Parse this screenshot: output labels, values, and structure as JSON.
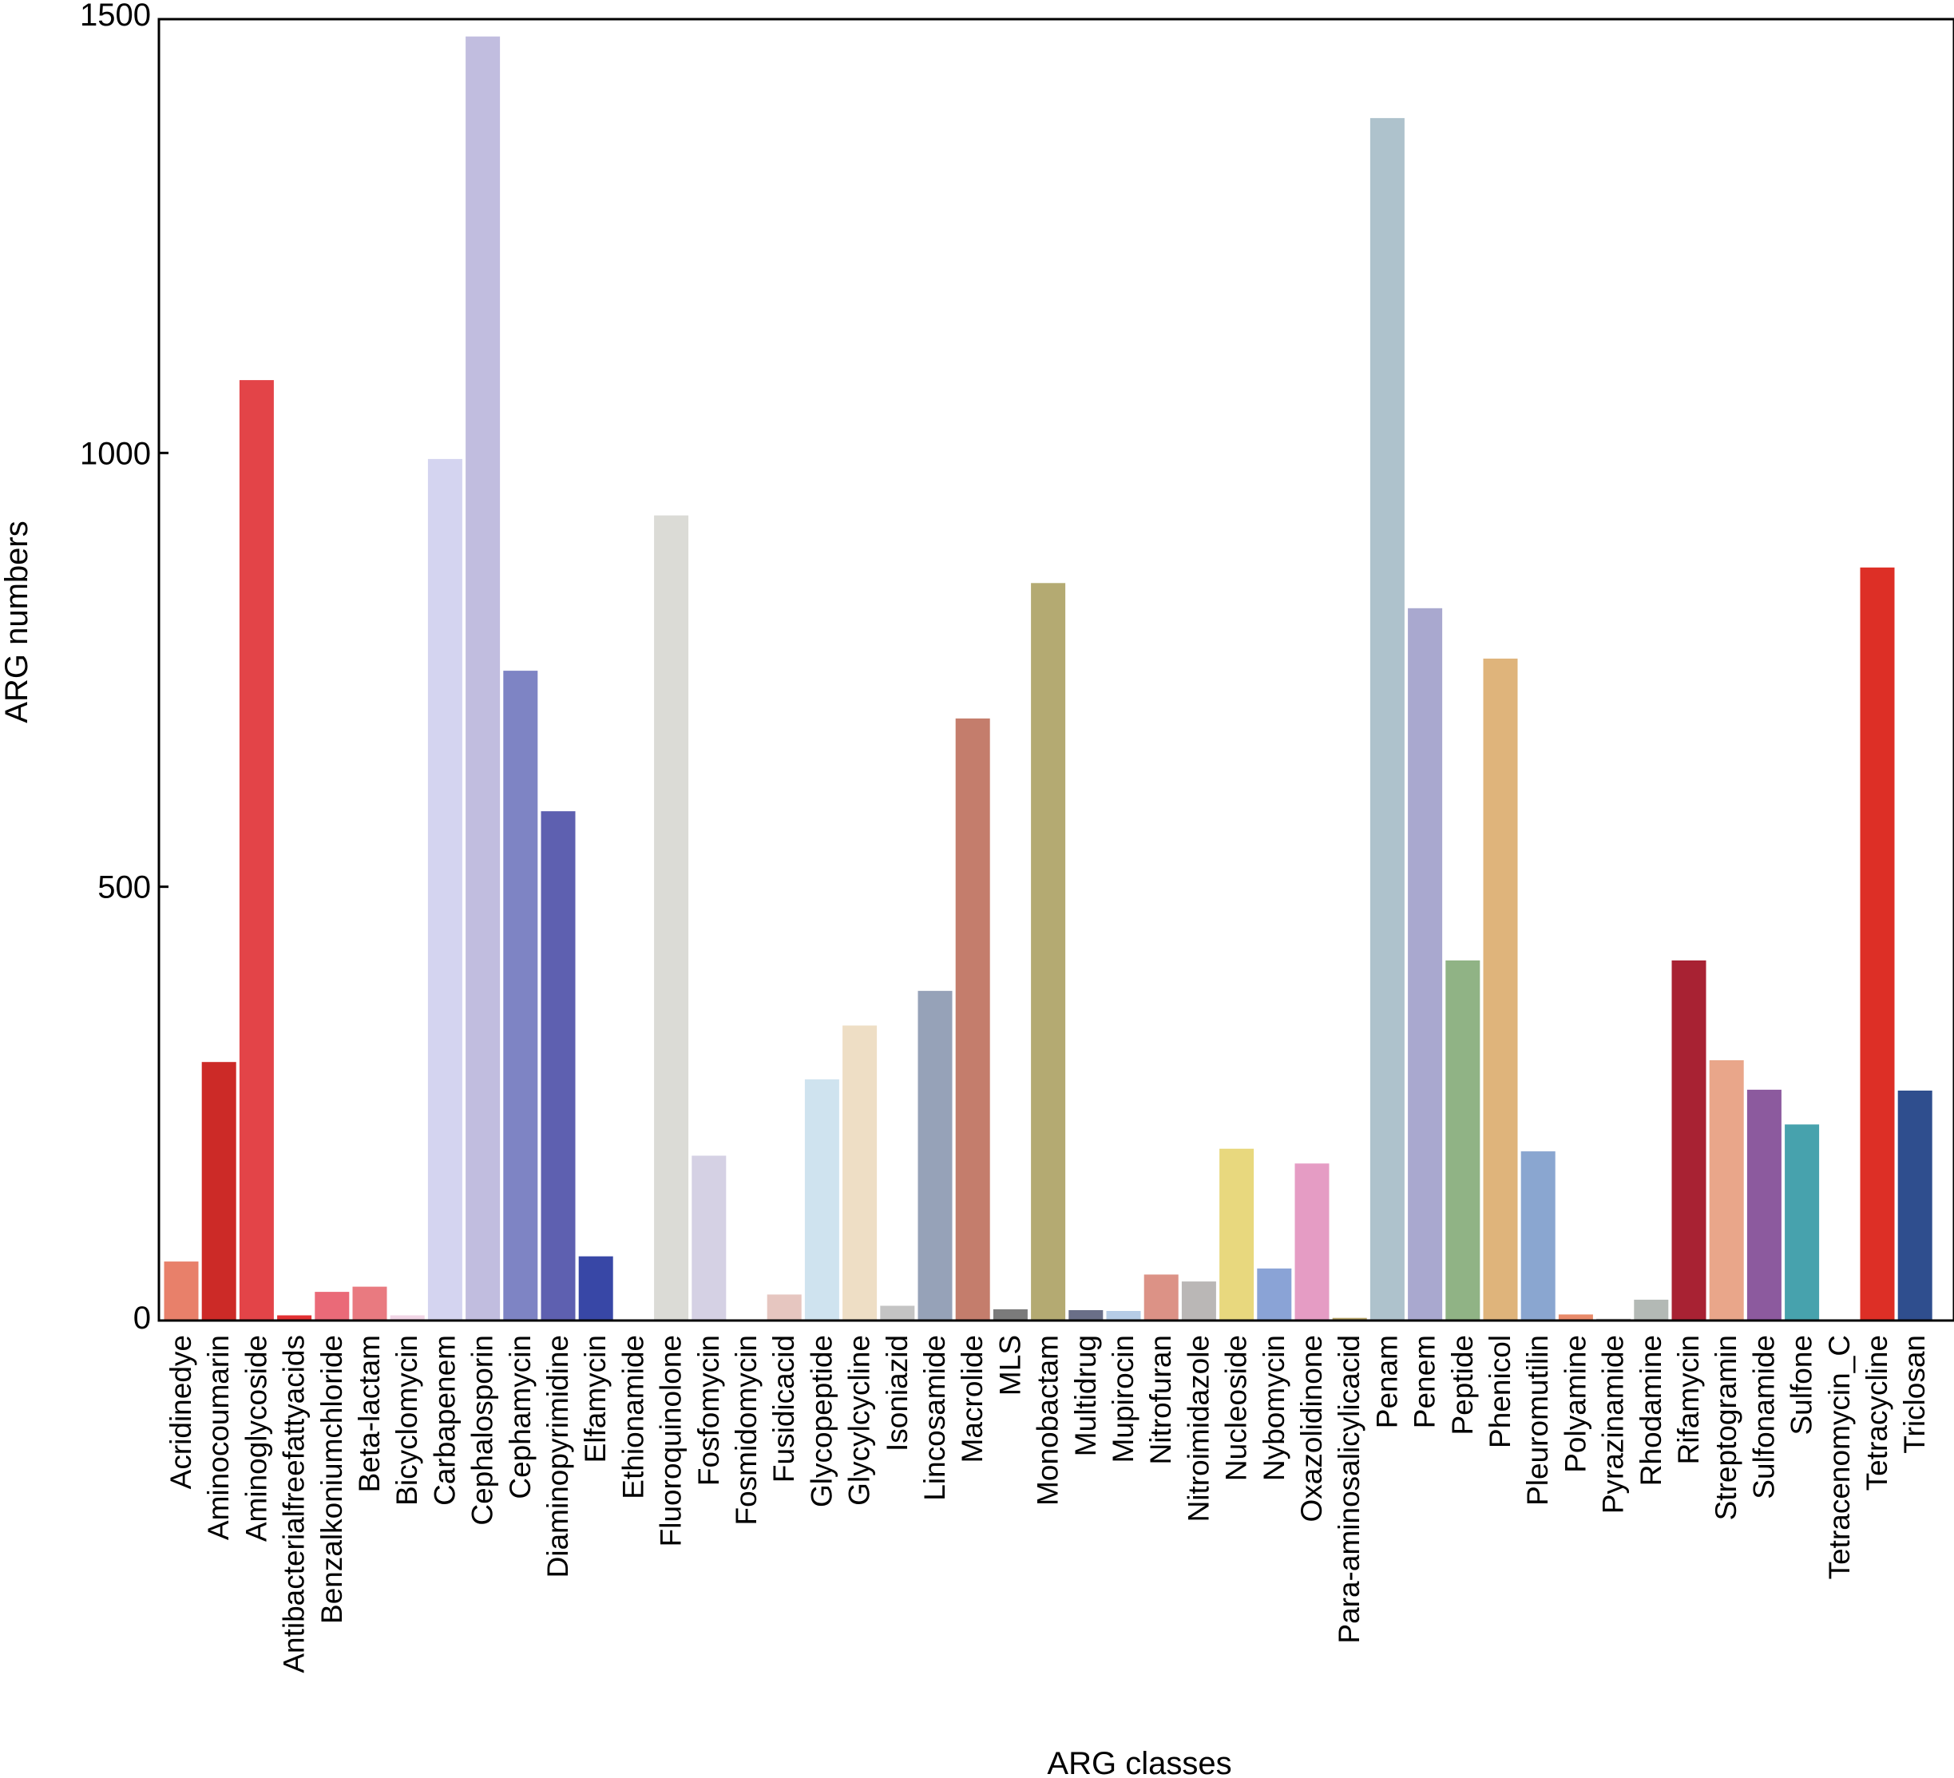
{
  "chart_data": {
    "type": "bar",
    "title": "",
    "xlabel": "ARG classes",
    "ylabel": "ARG numbers",
    "ylim": [
      0,
      1500
    ],
    "yticks": [
      0,
      500,
      1000,
      1500
    ],
    "grid": false,
    "legend": "none",
    "categories": [
      "Acridinedye",
      "Aminocoumarin",
      "Aminoglycoside",
      "Antibacterialfreefattyacids",
      "Benzalkoniumchloride",
      "Beta-lactam",
      "Bicyclomycin",
      "Carbapenem",
      "Cephalosporin",
      "Cephamycin",
      "Diaminopyrimidine",
      "Elfamycin",
      "Ethionamide",
      "Fluoroquinolone",
      "Fosfomycin",
      "Fosmidomycin",
      "Fusidicacid",
      "Glycopeptide",
      "Glycylcycline",
      "Isoniazid",
      "Lincosamide",
      "Macrolide",
      "MLS",
      "Monobactam",
      "Multidrug",
      "Mupirocin",
      "Nitrofuran",
      "Nitroimidazole",
      "Nucleoside",
      "Nybomycin",
      "Oxazolidinone",
      "Para-aminosalicylicacid",
      "Penam",
      "Penem",
      "Peptide",
      "Phenicol",
      "Pleuromutilin",
      "Polyamine",
      "Pyrazinamide",
      "Rhodamine",
      "Rifamycin",
      "Streptogramin",
      "Sulfonamide",
      "Sulfone",
      "Tetracenomycin_C",
      "Tetracycline",
      "Triclosan"
    ],
    "values": [
      68,
      298,
      1084,
      6,
      33,
      39,
      6,
      993,
      1480,
      749,
      587,
      74,
      1,
      928,
      190,
      1,
      30,
      278,
      340,
      17,
      380,
      694,
      13,
      850,
      12,
      11,
      53,
      45,
      198,
      60,
      181,
      3,
      1386,
      821,
      415,
      763,
      195,
      7,
      2,
      24,
      415,
      300,
      266,
      226,
      1,
      868,
      265
    ],
    "colors": [
      "#e8806a",
      "#cc2a27",
      "#e34448",
      "#e23033",
      "#ea6a78",
      "#e97a80",
      "#f1d5e6",
      "#d4d4f0",
      "#c1bddf",
      "#7e84c4",
      "#5e60b0",
      "#3847a6",
      "#c8c8c8",
      "#dbdbd6",
      "#d5d1e4",
      "#d0d0d0",
      "#e6c6c0",
      "#cfe3ef",
      "#eedec5",
      "#c4c4c4",
      "#96a2b8",
      "#c47d6c",
      "#7b7b7b",
      "#b4aa72",
      "#6a6f88",
      "#b6cce6",
      "#dc9286",
      "#bab7b6",
      "#e8d87e",
      "#8aa3d6",
      "#e59cc4",
      "#b8a66a",
      "#aec2cc",
      "#a9a8cf",
      "#90b385",
      "#dfb47b",
      "#8aa6d0",
      "#e88a6a",
      "#b8b8b8",
      "#b3b9b5",
      "#a82233",
      "#e9a68a",
      "#8c5a9e",
      "#47a2ad",
      "#d8d8d8",
      "#dd2f26",
      "#2f4e8e"
    ]
  },
  "axis": {
    "y_tick_labels": [
      "0",
      "500",
      "1000",
      "1500"
    ],
    "x_title": "ARG classes",
    "y_title": "ARG numbers"
  }
}
